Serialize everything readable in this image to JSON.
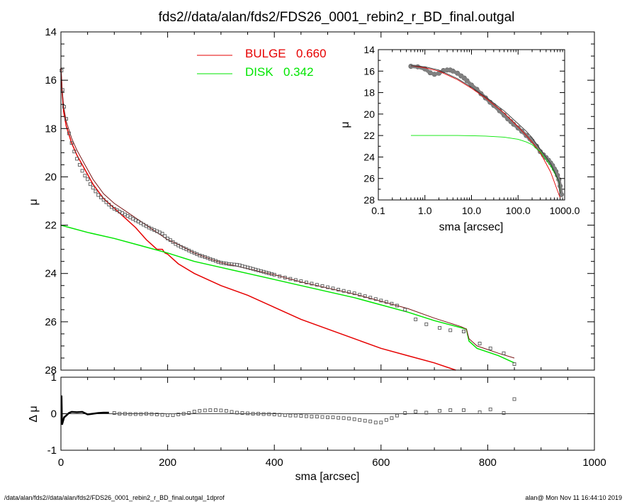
{
  "chart_data": {
    "title": "fds2//data/alan/fds2/FDS26_0001_rebin2_r_BD_final.outgal",
    "footer_left": "/data/alan/fds2//data/alan/fds2/FDS26_0001_rebin2_r_BD_final.outgal_1dprof",
    "footer_right": "alan@  Mon Nov 11 16:44:10 2019",
    "main": {
      "type": "line",
      "xlabel": "sma [arcsec]",
      "ylabel": "μ",
      "xlim": [
        0,
        1000
      ],
      "ylim_inverted": [
        28,
        14
      ],
      "xticks": [
        "0",
        "200",
        "400",
        "600",
        "800",
        "1000"
      ],
      "yticks": [
        "14",
        "16",
        "18",
        "20",
        "22",
        "24",
        "26",
        "28"
      ],
      "legend": [
        {
          "label": "BULGE",
          "value": "0.660",
          "color": "#e60000"
        },
        {
          "label": "DISK",
          "value": "0.342",
          "color": "#00e600"
        }
      ],
      "series": [
        {
          "name": "BULGE",
          "color": "#e60000",
          "x": [
            0,
            2,
            5,
            10,
            20,
            30,
            40,
            50,
            60,
            70,
            80,
            100,
            120,
            140,
            160,
            180,
            190,
            195,
            200,
            220,
            250,
            300,
            350,
            400,
            450,
            500,
            550,
            600,
            650,
            700,
            740
          ],
          "y": [
            15.5,
            16.4,
            17.3,
            17.9,
            18.6,
            19.1,
            19.5,
            19.9,
            20.3,
            20.6,
            20.9,
            21.3,
            21.7,
            22.1,
            22.6,
            23.0,
            23.0,
            23.15,
            23.2,
            23.6,
            24.0,
            24.5,
            24.9,
            25.4,
            25.9,
            26.3,
            26.7,
            27.1,
            27.4,
            27.7,
            28.0
          ]
        },
        {
          "name": "DISK",
          "color": "#00e600",
          "x": [
            0,
            50,
            100,
            150,
            200,
            250,
            300,
            350,
            400,
            450,
            500,
            550,
            600,
            650,
            700,
            760,
            765,
            780,
            800,
            820,
            850
          ],
          "y": [
            22.0,
            22.3,
            22.55,
            22.85,
            23.15,
            23.5,
            23.75,
            24.0,
            24.25,
            24.5,
            24.75,
            25.0,
            25.3,
            25.6,
            25.95,
            26.3,
            26.8,
            27.1,
            27.25,
            27.4,
            27.7
          ]
        },
        {
          "name": "model",
          "color": "#7a1515",
          "x": [
            0,
            2,
            5,
            10,
            20,
            30,
            40,
            50,
            60,
            70,
            80,
            100,
            120,
            140,
            160,
            180,
            200,
            220,
            250,
            280,
            300,
            350,
            400,
            450,
            500,
            550,
            600,
            650,
            700,
            750,
            760,
            765,
            780,
            800,
            820,
            850
          ],
          "y": [
            15.5,
            16.3,
            17.1,
            17.7,
            18.4,
            18.9,
            19.3,
            19.7,
            20.1,
            20.4,
            20.7,
            21.1,
            21.4,
            21.7,
            22.0,
            22.3,
            22.6,
            22.8,
            23.15,
            23.4,
            23.55,
            23.8,
            24.05,
            24.35,
            24.6,
            24.85,
            25.15,
            25.45,
            25.85,
            26.2,
            26.3,
            26.7,
            27.0,
            27.15,
            27.3,
            27.5
          ]
        }
      ],
      "observed": {
        "name": "data",
        "x": [
          1,
          3,
          6,
          10,
          15,
          20,
          25,
          30,
          35,
          40,
          45,
          50,
          55,
          60,
          65,
          70,
          75,
          80,
          85,
          90,
          95,
          100,
          105,
          110,
          115,
          120,
          125,
          130,
          135,
          140,
          145,
          150,
          155,
          160,
          165,
          170,
          175,
          180,
          185,
          190,
          195,
          200,
          205,
          210,
          215,
          220,
          225,
          230,
          235,
          240,
          245,
          250,
          255,
          260,
          265,
          270,
          275,
          280,
          285,
          290,
          295,
          300,
          305,
          310,
          315,
          320,
          325,
          330,
          335,
          340,
          345,
          350,
          355,
          360,
          365,
          370,
          375,
          380,
          385,
          390,
          395,
          400,
          410,
          420,
          430,
          440,
          450,
          460,
          470,
          480,
          490,
          500,
          510,
          520,
          530,
          540,
          550,
          560,
          570,
          580,
          590,
          600,
          610,
          620,
          630,
          645,
          665,
          685,
          710,
          730,
          755,
          785,
          805,
          830,
          850
        ],
        "y": [
          15.6,
          16.4,
          17.1,
          17.6,
          18.2,
          18.6,
          18.95,
          19.25,
          19.5,
          19.75,
          19.95,
          20.1,
          20.3,
          20.45,
          20.6,
          20.75,
          20.85,
          20.95,
          21.05,
          21.15,
          21.25,
          21.32,
          21.38,
          21.44,
          21.5,
          21.56,
          21.62,
          21.68,
          21.74,
          21.8,
          21.85,
          21.92,
          21.98,
          22.04,
          22.1,
          22.15,
          22.2,
          22.25,
          22.3,
          22.35,
          22.45,
          22.55,
          22.62,
          22.7,
          22.78,
          22.84,
          22.9,
          22.95,
          23.0,
          23.05,
          23.1,
          23.15,
          23.2,
          23.25,
          23.28,
          23.32,
          23.36,
          23.4,
          23.44,
          23.48,
          23.52,
          23.55,
          23.57,
          23.59,
          23.61,
          23.62,
          23.63,
          23.64,
          23.66,
          23.69,
          23.72,
          23.75,
          23.78,
          23.81,
          23.84,
          23.87,
          23.9,
          23.93,
          23.96,
          23.99,
          24.02,
          24.05,
          24.12,
          24.17,
          24.22,
          24.27,
          24.32,
          24.37,
          24.42,
          24.47,
          24.52,
          24.57,
          24.62,
          24.67,
          24.72,
          24.77,
          24.82,
          24.88,
          24.94,
          25.0,
          25.06,
          25.12,
          25.18,
          25.25,
          25.33,
          25.5,
          25.9,
          26.1,
          26.25,
          26.35,
          26.4,
          26.9,
          27.1,
          27.3,
          27.75
        ]
      }
    },
    "residual": {
      "type": "scatter",
      "xlabel": "sma [arcsec]",
      "ylabel": "Δ μ",
      "xlim": [
        0,
        1000
      ],
      "ylim": [
        -1,
        1
      ],
      "yticks": [
        "1",
        "0",
        "-1"
      ],
      "x": [
        1,
        2,
        4,
        6,
        10,
        15,
        20,
        30,
        40,
        50,
        60,
        70,
        80,
        90,
        100,
        110,
        120,
        130,
        140,
        150,
        160,
        170,
        180,
        190,
        200,
        210,
        220,
        230,
        240,
        250,
        260,
        270,
        280,
        290,
        300,
        310,
        320,
        330,
        340,
        350,
        360,
        370,
        380,
        390,
        400,
        410,
        420,
        430,
        440,
        450,
        460,
        470,
        480,
        490,
        500,
        510,
        520,
        530,
        540,
        550,
        560,
        570,
        580,
        590,
        600,
        610,
        620,
        630,
        645,
        665,
        685,
        710,
        730,
        755,
        785,
        805,
        830,
        850
      ],
      "y": [
        0.5,
        -0.3,
        -0.2,
        -0.1,
        -0.05,
        0.02,
        0.05,
        0.04,
        0.05,
        -0.02,
        0.0,
        0.02,
        0.03,
        0.03,
        0.02,
        0.0,
        0.0,
        -0.01,
        -0.01,
        -0.01,
        0.0,
        -0.01,
        -0.02,
        -0.03,
        -0.04,
        -0.04,
        -0.02,
        0.0,
        0.02,
        0.06,
        0.08,
        0.09,
        0.1,
        0.1,
        0.09,
        0.08,
        0.05,
        0.03,
        0.02,
        0.01,
        0.0,
        0.0,
        -0.01,
        -0.01,
        -0.02,
        -0.03,
        -0.04,
        -0.05,
        -0.05,
        -0.06,
        -0.07,
        -0.08,
        -0.08,
        -0.09,
        -0.1,
        -0.1,
        -0.11,
        -0.12,
        -0.13,
        -0.15,
        -0.17,
        -0.19,
        -0.21,
        -0.24,
        -0.24,
        -0.17,
        -0.12,
        -0.05,
        0.02,
        0.06,
        0.03,
        0.08,
        0.1,
        0.1,
        0.04,
        0.12,
        0.02,
        0.4
      ]
    },
    "inset": {
      "type": "line",
      "xlabel": "sma [arcsec]",
      "ylabel": "μ",
      "xscale": "log",
      "xlim": [
        0.1,
        1000
      ],
      "ylim_inverted": [
        28,
        14
      ],
      "xticks": [
        "0.1",
        "1.0",
        "10.0",
        "100.0",
        "1000.0"
      ],
      "yticks": [
        "14",
        "16",
        "18",
        "20",
        "22",
        "24",
        "26",
        "28"
      ],
      "series": [
        {
          "name": "BULGE",
          "color": "#e60000",
          "x": [
            0.5,
            1,
            2,
            5,
            10,
            20,
            50,
            100,
            150,
            200,
            300,
            500,
            800
          ],
          "y": [
            15.5,
            15.7,
            16.0,
            16.8,
            17.6,
            18.5,
            19.9,
            21.2,
            22.0,
            22.6,
            23.6,
            25.4,
            27.8
          ]
        },
        {
          "name": "DISK",
          "color": "#00e600",
          "x": [
            0.5,
            1,
            2,
            5,
            10,
            20,
            50,
            100,
            150,
            200,
            300,
            500,
            760,
            800
          ],
          "y": [
            22.0,
            22.0,
            22.0,
            22.0,
            22.02,
            22.05,
            22.15,
            22.35,
            22.6,
            22.85,
            23.5,
            24.8,
            26.3,
            27.3
          ]
        },
        {
          "name": "model",
          "color": "#333333",
          "x": [
            0.5,
            1,
            2,
            5,
            10,
            20,
            50,
            100,
            150,
            200,
            300,
            500,
            760,
            800
          ],
          "y": [
            15.5,
            15.6,
            15.9,
            16.7,
            17.5,
            18.4,
            19.7,
            20.9,
            21.6,
            22.2,
            23.3,
            24.6,
            26.3,
            27.4
          ]
        }
      ],
      "observed": {
        "name": "data",
        "x": [
          0.5,
          0.7,
          1.0,
          1.3,
          1.6,
          2.0,
          2.5,
          3.0,
          3.5,
          4.0,
          5.0,
          6.0,
          7.0,
          8.0,
          10,
          13,
          16,
          20,
          25,
          30,
          40,
          50,
          60,
          70,
          80,
          100,
          120,
          150,
          180,
          200,
          250,
          300,
          350,
          400,
          450,
          500,
          550,
          600,
          650,
          700,
          750,
          800,
          850
        ],
        "y": [
          15.55,
          15.6,
          15.8,
          16.15,
          16.3,
          16.2,
          15.95,
          15.9,
          15.9,
          16.0,
          16.2,
          16.45,
          16.65,
          16.9,
          17.3,
          17.7,
          18.1,
          18.5,
          18.9,
          19.2,
          19.7,
          20.1,
          20.45,
          20.7,
          20.95,
          21.3,
          21.6,
          22.0,
          22.3,
          22.5,
          23.0,
          23.5,
          23.8,
          24.05,
          24.3,
          24.55,
          24.8,
          25.1,
          25.35,
          25.7,
          26.1,
          26.7,
          27.5
        ]
      }
    }
  }
}
